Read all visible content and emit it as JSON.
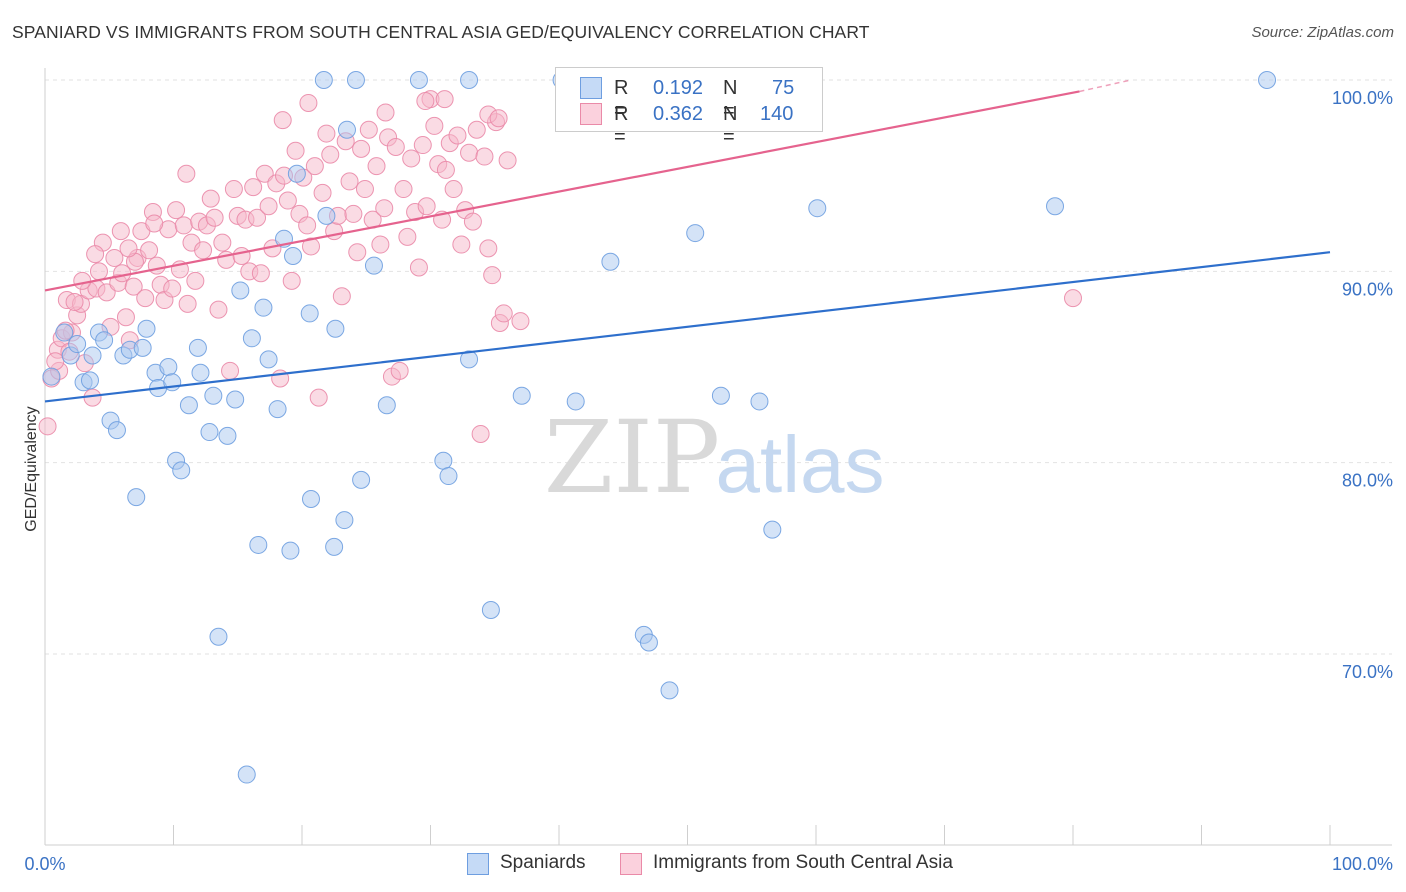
{
  "title": "SPANIARD VS IMMIGRANTS FROM SOUTH CENTRAL ASIA GED/EQUIVALENCY CORRELATION CHART",
  "source": "Source: ZipAtlas.com",
  "watermark": {
    "zip": "ZIP",
    "atlas": "atlas"
  },
  "legend_top": {
    "r_label": "R =",
    "n_label": "N =",
    "rows": [
      {
        "r": "0.192",
        "n": "75"
      },
      {
        "r": "0.362",
        "n": "140"
      }
    ]
  },
  "colors": {
    "blue_fill": "#a9c8f0",
    "blue_stroke": "#6e9ee0",
    "blue_line": "#2e6fcc",
    "pink_fill": "#f6b7ca",
    "pink_stroke": "#ea8aa8",
    "pink_line": "#e5638e",
    "tick_text": "#3a72c4"
  },
  "chart_data": {
    "type": "scatter",
    "title": "SPANIARD VS IMMIGRANTS FROM SOUTH CENTRAL ASIA GED/EQUIVALENCY CORRELATION CHART",
    "xlabel": "",
    "ylabel": "GED/Equivalency",
    "xlim": [
      0,
      100
    ],
    "ylim": [
      60,
      102
    ],
    "x_tick_labels": [
      "0.0%",
      "100.0%"
    ],
    "y_ticks": [
      70,
      80,
      90,
      100
    ],
    "y_tick_labels": [
      "70.0%",
      "80.0%",
      "90.0%",
      "100.0%"
    ],
    "grid": true,
    "legend_position": "bottom",
    "series": [
      {
        "name": "Spaniards",
        "color": "#a9c8f0",
        "trend": {
          "x": [
            0,
            100
          ],
          "y": [
            83.2,
            91.0
          ]
        },
        "points": [
          [
            0.5,
            84.5
          ],
          [
            1.5,
            86.8
          ],
          [
            2.0,
            85.6
          ],
          [
            2.5,
            86.2
          ],
          [
            3.0,
            84.2
          ],
          [
            3.5,
            84.3
          ],
          [
            3.7,
            85.6
          ],
          [
            4.2,
            86.8
          ],
          [
            4.6,
            86.4
          ],
          [
            5.1,
            82.2
          ],
          [
            5.6,
            81.7
          ],
          [
            6.1,
            85.6
          ],
          [
            6.6,
            85.9
          ],
          [
            7.1,
            78.2
          ],
          [
            7.6,
            86.0
          ],
          [
            7.9,
            87.0
          ],
          [
            8.6,
            84.7
          ],
          [
            8.8,
            83.9
          ],
          [
            9.6,
            85.0
          ],
          [
            9.9,
            84.2
          ],
          [
            10.2,
            80.1
          ],
          [
            10.6,
            79.6
          ],
          [
            11.2,
            83.0
          ],
          [
            11.9,
            86.0
          ],
          [
            12.1,
            84.7
          ],
          [
            12.8,
            81.6
          ],
          [
            13.1,
            83.5
          ],
          [
            13.5,
            70.9
          ],
          [
            14.2,
            81.4
          ],
          [
            14.8,
            83.3
          ],
          [
            15.2,
            89.0
          ],
          [
            15.7,
            63.7
          ],
          [
            16.1,
            86.5
          ],
          [
            16.6,
            75.7
          ],
          [
            17.0,
            88.1
          ],
          [
            17.4,
            85.4
          ],
          [
            18.1,
            82.8
          ],
          [
            18.6,
            91.7
          ],
          [
            19.1,
            75.4
          ],
          [
            19.3,
            90.8
          ],
          [
            19.6,
            95.1
          ],
          [
            20.6,
            87.8
          ],
          [
            20.7,
            78.1
          ],
          [
            21.9,
            92.9
          ],
          [
            22.6,
            87.0
          ],
          [
            22.5,
            75.6
          ],
          [
            23.3,
            77.0
          ],
          [
            23.5,
            97.4
          ],
          [
            24.2,
            100.0
          ],
          [
            24.6,
            79.1
          ],
          [
            25.6,
            90.3
          ],
          [
            26.6,
            83.0
          ],
          [
            29.1,
            100.0
          ],
          [
            31.0,
            80.1
          ],
          [
            31.4,
            79.3
          ],
          [
            33.0,
            100.0
          ],
          [
            33.0,
            85.4
          ],
          [
            34.7,
            72.3
          ],
          [
            37.1,
            83.5
          ],
          [
            40.6,
            100.0
          ],
          [
            41.3,
            83.2
          ],
          [
            44.0,
            90.5
          ],
          [
            46.6,
            71.0
          ],
          [
            47.0,
            70.6
          ],
          [
            48.6,
            68.1
          ],
          [
            50.1,
            100.0
          ],
          [
            50.6,
            92.0
          ],
          [
            52.6,
            83.5
          ],
          [
            55.6,
            83.2
          ],
          [
            56.6,
            76.5
          ],
          [
            60.1,
            93.3
          ],
          [
            78.6,
            93.4
          ],
          [
            95.1,
            100.0
          ],
          [
            40.2,
            100.0
          ],
          [
            21.7,
            100.0
          ]
        ]
      },
      {
        "name": "Immigrants from South Central Asia",
        "color": "#f6b7ca",
        "trend": {
          "x": [
            0,
            80.5
          ],
          "y": [
            89.0,
            99.4
          ]
        },
        "trend_dashed": {
          "x": [
            80.5,
            84.5
          ],
          "y": [
            99.4,
            100.0
          ]
        },
        "points": [
          [
            0.2,
            81.9
          ],
          [
            0.5,
            84.4
          ],
          [
            1.0,
            85.9
          ],
          [
            1.3,
            86.5
          ],
          [
            1.7,
            88.5
          ],
          [
            2.1,
            86.8
          ],
          [
            2.5,
            87.7
          ],
          [
            2.8,
            88.3
          ],
          [
            3.1,
            85.2
          ],
          [
            3.4,
            89.0
          ],
          [
            3.7,
            83.4
          ],
          [
            4.0,
            89.1
          ],
          [
            4.2,
            90.0
          ],
          [
            4.5,
            91.5
          ],
          [
            4.8,
            88.9
          ],
          [
            5.1,
            87.1
          ],
          [
            5.4,
            90.7
          ],
          [
            5.7,
            89.4
          ],
          [
            6.0,
            89.9
          ],
          [
            6.3,
            87.6
          ],
          [
            6.6,
            86.4
          ],
          [
            6.9,
            89.2
          ],
          [
            7.2,
            90.7
          ],
          [
            7.5,
            92.1
          ],
          [
            7.8,
            88.6
          ],
          [
            8.1,
            91.1
          ],
          [
            8.4,
            93.1
          ],
          [
            8.7,
            90.3
          ],
          [
            9.0,
            89.3
          ],
          [
            9.3,
            88.5
          ],
          [
            9.6,
            92.2
          ],
          [
            9.9,
            89.1
          ],
          [
            10.2,
            93.2
          ],
          [
            10.5,
            90.1
          ],
          [
            10.8,
            92.4
          ],
          [
            11.1,
            88.3
          ],
          [
            11.4,
            91.5
          ],
          [
            11.7,
            89.5
          ],
          [
            12.0,
            92.6
          ],
          [
            12.3,
            91.1
          ],
          [
            12.6,
            92.4
          ],
          [
            12.9,
            93.8
          ],
          [
            13.2,
            92.8
          ],
          [
            13.5,
            88.0
          ],
          [
            13.8,
            91.5
          ],
          [
            14.1,
            90.6
          ],
          [
            14.4,
            84.8
          ],
          [
            14.7,
            94.3
          ],
          [
            15.0,
            92.9
          ],
          [
            15.3,
            90.8
          ],
          [
            15.6,
            92.7
          ],
          [
            15.9,
            90.0
          ],
          [
            16.2,
            94.4
          ],
          [
            16.5,
            92.8
          ],
          [
            16.8,
            89.9
          ],
          [
            17.1,
            95.1
          ],
          [
            17.4,
            93.4
          ],
          [
            17.7,
            91.2
          ],
          [
            18.0,
            94.6
          ],
          [
            18.3,
            84.4
          ],
          [
            18.6,
            95.0
          ],
          [
            18.9,
            93.7
          ],
          [
            19.2,
            89.5
          ],
          [
            19.5,
            96.3
          ],
          [
            19.8,
            93.0
          ],
          [
            20.1,
            94.9
          ],
          [
            20.4,
            92.4
          ],
          [
            20.7,
            91.3
          ],
          [
            21.0,
            95.5
          ],
          [
            21.3,
            83.4
          ],
          [
            21.6,
            94.1
          ],
          [
            21.9,
            97.2
          ],
          [
            22.2,
            96.1
          ],
          [
            22.5,
            92.1
          ],
          [
            22.8,
            92.9
          ],
          [
            23.1,
            88.7
          ],
          [
            23.4,
            96.8
          ],
          [
            23.7,
            94.7
          ],
          [
            24.0,
            93.0
          ],
          [
            24.3,
            91.0
          ],
          [
            24.6,
            96.4
          ],
          [
            24.9,
            94.3
          ],
          [
            25.2,
            97.4
          ],
          [
            25.5,
            92.7
          ],
          [
            25.8,
            95.5
          ],
          [
            26.1,
            91.4
          ],
          [
            26.4,
            93.3
          ],
          [
            26.7,
            97.0
          ],
          [
            27.0,
            84.5
          ],
          [
            27.3,
            96.5
          ],
          [
            27.6,
            84.8
          ],
          [
            27.9,
            94.3
          ],
          [
            28.2,
            91.8
          ],
          [
            28.5,
            95.9
          ],
          [
            28.8,
            93.1
          ],
          [
            29.1,
            90.2
          ],
          [
            29.4,
            96.6
          ],
          [
            29.7,
            93.4
          ],
          [
            30.0,
            99.0
          ],
          [
            30.3,
            97.6
          ],
          [
            30.6,
            95.6
          ],
          [
            30.9,
            92.7
          ],
          [
            31.2,
            95.3
          ],
          [
            31.5,
            96.7
          ],
          [
            31.8,
            94.3
          ],
          [
            32.1,
            97.1
          ],
          [
            32.4,
            91.4
          ],
          [
            32.7,
            93.2
          ],
          [
            33.0,
            96.2
          ],
          [
            33.3,
            92.6
          ],
          [
            33.6,
            97.4
          ],
          [
            33.9,
            81.5
          ],
          [
            34.2,
            96.0
          ],
          [
            34.5,
            91.2
          ],
          [
            34.8,
            89.8
          ],
          [
            35.1,
            97.8
          ],
          [
            35.4,
            87.3
          ],
          [
            35.7,
            87.8
          ],
          [
            36.0,
            95.8
          ],
          [
            37.0,
            87.4
          ],
          [
            80.0,
            88.6
          ],
          [
            26.5,
            98.3
          ],
          [
            29.6,
            98.9
          ],
          [
            31.1,
            99.0
          ],
          [
            34.5,
            98.2
          ],
          [
            35.3,
            98.0
          ],
          [
            20.5,
            98.8
          ],
          [
            18.5,
            97.9
          ],
          [
            11.0,
            95.1
          ],
          [
            8.5,
            92.5
          ],
          [
            7.0,
            90.5
          ],
          [
            6.5,
            91.2
          ],
          [
            5.9,
            92.1
          ],
          [
            3.9,
            90.9
          ],
          [
            2.9,
            89.5
          ],
          [
            2.3,
            88.4
          ],
          [
            1.9,
            85.8
          ],
          [
            1.6,
            86.9
          ],
          [
            1.1,
            84.8
          ],
          [
            0.8,
            85.3
          ]
        ]
      }
    ]
  }
}
